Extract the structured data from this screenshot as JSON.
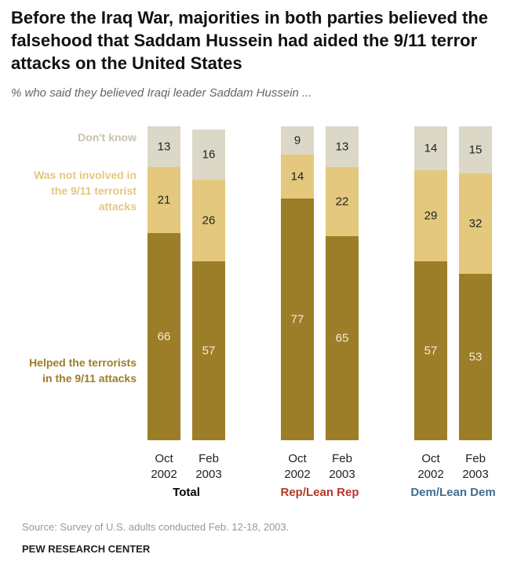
{
  "chart_data": {
    "type": "bar",
    "stacked": true,
    "title": "Before the Iraq War, majorities in both parties believed the falsehood that Saddam Hussein had aided the 9/11 terror attacks on the United States",
    "subtitle": "% who said they believed Iraqi leader Saddam Hussein ...",
    "groups": [
      {
        "name": "Total",
        "color": "#000000",
        "categories": [
          "Oct 2002",
          "Feb 2003"
        ]
      },
      {
        "name": "Rep/Lean Rep",
        "color": "#b5382a",
        "categories": [
          "Oct 2002",
          "Feb 2003"
        ]
      },
      {
        "name": "Dem/Lean Dem",
        "color": "#3f6f8e",
        "categories": [
          "Oct 2002",
          "Feb 2003"
        ]
      }
    ],
    "series": [
      {
        "name": "Helped the terrorists in the 9/11 attacks",
        "color": "#9c7d28",
        "values": [
          66,
          57,
          77,
          65,
          57,
          53
        ]
      },
      {
        "name": "Was not involved in the 9/11 terrorist attacks",
        "color": "#e3c87e",
        "values": [
          21,
          26,
          14,
          22,
          29,
          32
        ]
      },
      {
        "name": "Don't know",
        "color": "#dcd8c8",
        "values": [
          13,
          16,
          9,
          13,
          14,
          15
        ]
      }
    ],
    "ylim": [
      0,
      100
    ]
  },
  "source": "Source: Survey of U.S. adults conducted Feb. 12-18, 2003.",
  "brand": "PEW RESEARCH CENTER"
}
